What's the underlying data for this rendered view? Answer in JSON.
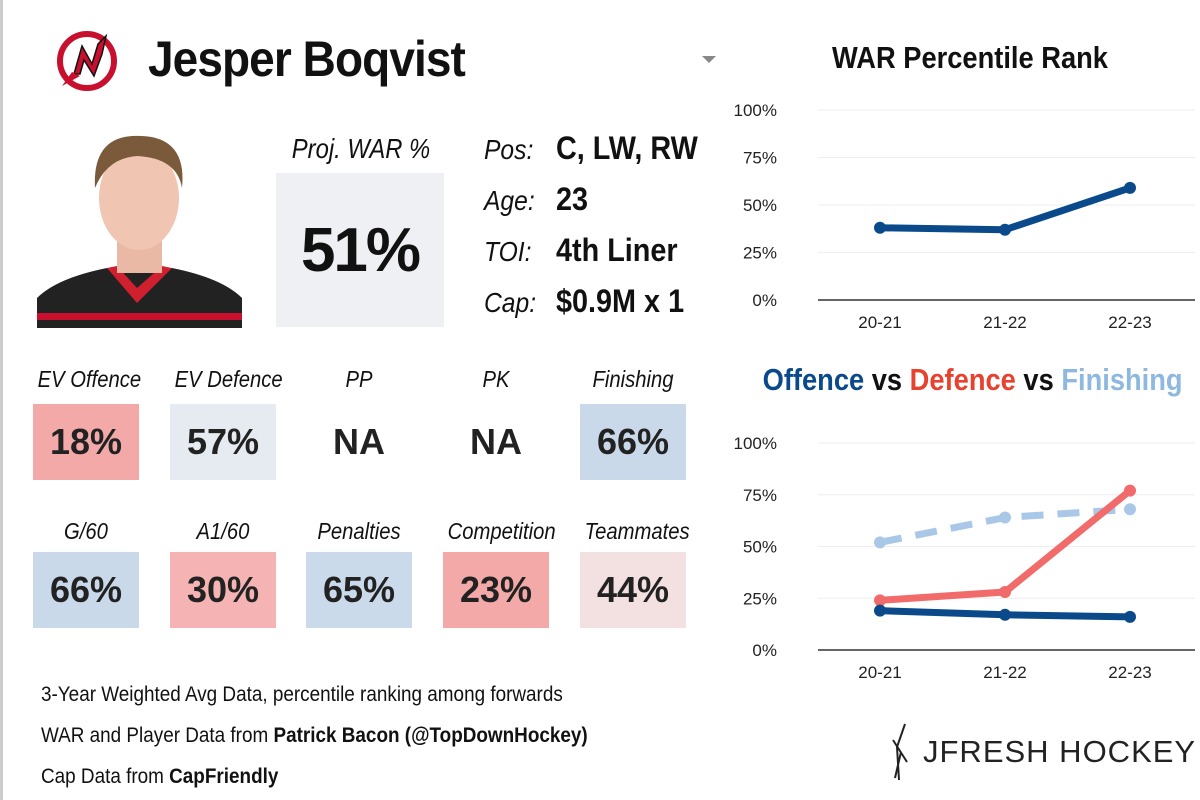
{
  "header": {
    "player_name": "Jesper Boqvist",
    "team_logo": "new-jersey-devils-logo",
    "dropdown_icon": "caret-down-icon"
  },
  "proj_war": {
    "label": "Proj. WAR %",
    "value": "51%"
  },
  "info": [
    {
      "key": "Pos:",
      "value": "C, LW, RW"
    },
    {
      "key": "Age:",
      "value": "23"
    },
    {
      "key": "TOI:",
      "value": "4th Liner"
    },
    {
      "key": "Cap:",
      "value": "$0.9M x 1"
    }
  ],
  "tiles": [
    {
      "label": "EV Offence",
      "value": "18%",
      "color": "#f4a9a9"
    },
    {
      "label": "EV Defence",
      "value": "57%",
      "color": "#e6ebf1"
    },
    {
      "label": "PP",
      "value": "NA",
      "color": "#ffffff"
    },
    {
      "label": "PK",
      "value": "NA",
      "color": "#ffffff"
    },
    {
      "label": "Finishing",
      "value": "66%",
      "color": "#c9d9ea"
    },
    {
      "label": "G/60",
      "value": "66%",
      "color": "#c9d9ea"
    },
    {
      "label": "A1/60",
      "value": "30%",
      "color": "#f5b3b3"
    },
    {
      "label": "Penalties",
      "value": "65%",
      "color": "#cadaea"
    },
    {
      "label": "Competition",
      "value": "23%",
      "color": "#f4a9a9"
    },
    {
      "label": "Teammates",
      "value": "44%",
      "color": "#f3e0e1"
    }
  ],
  "footer": {
    "line1": "3-Year Weighted Avg Data, percentile ranking among forwards",
    "line2_prefix": "WAR and Player Data from ",
    "line2_bold": "Patrick Bacon (@TopDownHockey)",
    "line3_prefix": "Cap Data from ",
    "line3_bold": "CapFriendly"
  },
  "brand": "JFRESH HOCKEY",
  "chart_data": [
    {
      "type": "line",
      "title": "WAR Percentile Rank",
      "categories": [
        "20-21",
        "21-22",
        "22-23"
      ],
      "yticks": [
        "0%",
        "25%",
        "50%",
        "75%",
        "100%"
      ],
      "ylim": [
        0,
        100
      ],
      "grid": true,
      "series": [
        {
          "values": [
            38,
            37,
            59
          ],
          "color": "#0a4a8a",
          "dash": false
        }
      ]
    },
    {
      "type": "line",
      "title_parts": [
        {
          "text": "Offence",
          "color": "#0a4a8a"
        },
        {
          "text": " vs ",
          "color": "#111111"
        },
        {
          "text": "Defence",
          "color": "#e8412d"
        },
        {
          "text": " vs ",
          "color": "#111111"
        },
        {
          "text": "Finishing",
          "color": "#8fb8e0"
        }
      ],
      "categories": [
        "20-21",
        "21-22",
        "22-23"
      ],
      "yticks": [
        "0%",
        "25%",
        "50%",
        "75%",
        "100%"
      ],
      "ylim": [
        0,
        100
      ],
      "grid": true,
      "series": [
        {
          "name": "Finishing",
          "values": [
            52,
            64,
            68
          ],
          "color": "#a9c8e8",
          "dash": true
        },
        {
          "name": "Defence",
          "values": [
            24,
            28,
            77
          ],
          "color": "#f26b6b",
          "dash": false
        },
        {
          "name": "Offence",
          "values": [
            19,
            17,
            16
          ],
          "color": "#0a4a8a",
          "dash": false
        }
      ]
    }
  ]
}
